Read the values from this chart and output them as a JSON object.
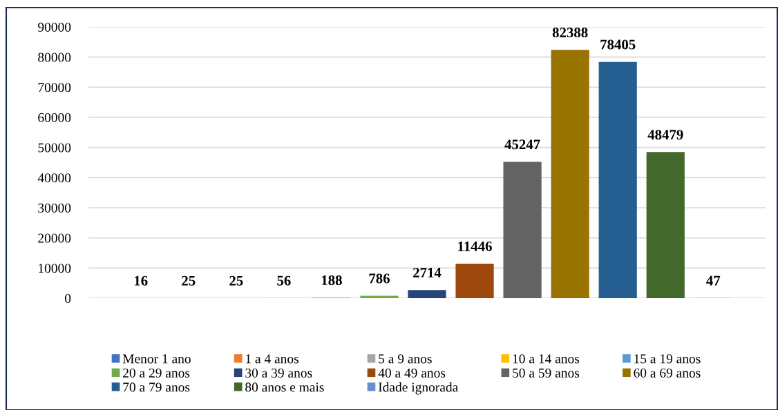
{
  "chart_data": {
    "type": "bar",
    "categories": [
      null
    ],
    "series": [
      {
        "name": "Menor 1 ano",
        "color": "#4472c4",
        "values": [
          16
        ]
      },
      {
        "name": "1 a 4 anos",
        "color": "#ed7d31",
        "values": [
          25
        ]
      },
      {
        "name": "5 a 9 anos",
        "color": "#a5a5a5",
        "values": [
          25
        ]
      },
      {
        "name": "10 a 14 anos",
        "color": "#ffc000",
        "values": [
          56
        ]
      },
      {
        "name": "15 a 19 anos",
        "color": "#5b9bd5",
        "values": [
          188
        ]
      },
      {
        "name": "20 a 29 anos",
        "color": "#70ad47",
        "values": [
          786
        ]
      },
      {
        "name": "30 a 39 anos",
        "color": "#264478",
        "values": [
          2714
        ]
      },
      {
        "name": "40 a 49 anos",
        "color": "#9e480e",
        "values": [
          11446
        ]
      },
      {
        "name": "50 a 59 anos",
        "color": "#636363",
        "values": [
          45247
        ]
      },
      {
        "name": "60 a 69 anos",
        "color": "#997300",
        "values": [
          82388
        ]
      },
      {
        "name": "70 a 79 anos",
        "color": "#255e91",
        "values": [
          78405
        ]
      },
      {
        "name": "80 anos e mais",
        "color": "#43682b",
        "values": [
          48479
        ]
      },
      {
        "name": "Idade ignorada",
        "color": "#698ed0",
        "values": [
          47
        ]
      }
    ],
    "ylim": [
      0,
      90000
    ],
    "yticks": [
      0,
      10000,
      20000,
      30000,
      40000,
      50000,
      60000,
      70000,
      80000,
      90000
    ],
    "grid": "y",
    "data_labels": true,
    "legend": "bottom",
    "tick_labels": "y"
  }
}
